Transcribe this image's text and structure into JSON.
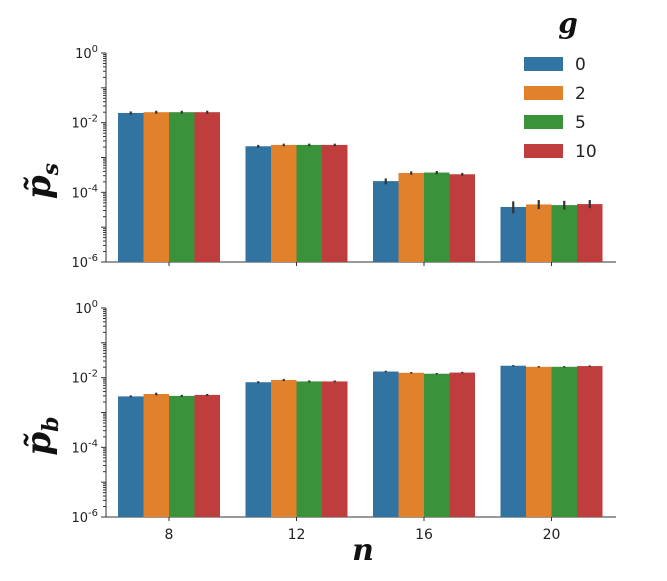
{
  "colors": {
    "series": [
      "#3274a1",
      "#e1812c",
      "#3a923a",
      "#c03d3e"
    ],
    "error": "#333333",
    "axis": "#333333"
  },
  "legend": {
    "title": "g",
    "placement": "top-right",
    "entries": [
      "0",
      "2",
      "5",
      "10"
    ]
  },
  "xlabel": "n",
  "chart_data": [
    {
      "type": "bar",
      "ylabel_base": "p",
      "ylabel_sub": "s",
      "yscale": "log",
      "ylim": [
        1e-06,
        1
      ],
      "ytick_exponents": [
        "0",
        "-2",
        "-4",
        "-6"
      ],
      "categories": [
        "8",
        "12",
        "16",
        "20"
      ],
      "series": [
        {
          "name": "0",
          "values": [
            0.019,
            0.0021,
            0.00021,
            3.8e-05
          ],
          "err_lo": [
            0.017,
            0.0019,
            0.00017,
            2.5e-05
          ],
          "err_hi": [
            0.021,
            0.0023,
            0.00025,
            5.5e-05
          ]
        },
        {
          "name": "2",
          "values": [
            0.02,
            0.0023,
            0.00036,
            4.5e-05
          ],
          "err_lo": [
            0.018,
            0.0021,
            0.00032,
            3.3e-05
          ],
          "err_hi": [
            0.022,
            0.0025,
            0.0004,
            6e-05
          ]
        },
        {
          "name": "5",
          "values": [
            0.02,
            0.0023,
            0.00037,
            4.3e-05
          ],
          "err_lo": [
            0.018,
            0.0021,
            0.00033,
            3.2e-05
          ],
          "err_hi": [
            0.022,
            0.0025,
            0.00041,
            5.7e-05
          ]
        },
        {
          "name": "10",
          "values": [
            0.02,
            0.0023,
            0.00033,
            4.6e-05
          ],
          "err_lo": [
            0.018,
            0.0021,
            0.0003,
            3.5e-05
          ],
          "err_hi": [
            0.022,
            0.0025,
            0.00036,
            6e-05
          ]
        }
      ]
    },
    {
      "type": "bar",
      "ylabel_base": "p",
      "ylabel_sub": "b",
      "yscale": "log",
      "ylim": [
        1e-06,
        1
      ],
      "ytick_exponents": [
        "0",
        "-2",
        "-4",
        "-6"
      ],
      "categories": [
        "8",
        "12",
        "16",
        "20"
      ],
      "xticks": [
        "8",
        "12",
        "16",
        "20"
      ],
      "series": [
        {
          "name": "0",
          "values": [
            0.0029,
            0.0074,
            0.015,
            0.022
          ],
          "err_lo": [
            0.0027,
            0.0069,
            0.0142,
            0.021
          ],
          "err_hi": [
            0.0031,
            0.0079,
            0.0158,
            0.023
          ]
        },
        {
          "name": "2",
          "values": [
            0.0034,
            0.0086,
            0.0138,
            0.0205
          ],
          "err_lo": [
            0.0031,
            0.008,
            0.0131,
            0.0195
          ],
          "err_hi": [
            0.0037,
            0.0092,
            0.0145,
            0.0215
          ]
        },
        {
          "name": "5",
          "values": [
            0.003,
            0.0078,
            0.013,
            0.0205
          ],
          "err_lo": [
            0.0028,
            0.0073,
            0.0124,
            0.0195
          ],
          "err_hi": [
            0.0032,
            0.0083,
            0.0136,
            0.0215
          ]
        },
        {
          "name": "10",
          "values": [
            0.0032,
            0.0078,
            0.014,
            0.0215
          ],
          "err_lo": [
            0.003,
            0.0073,
            0.0133,
            0.0205
          ],
          "err_hi": [
            0.0034,
            0.0083,
            0.0147,
            0.0225
          ]
        }
      ]
    }
  ]
}
